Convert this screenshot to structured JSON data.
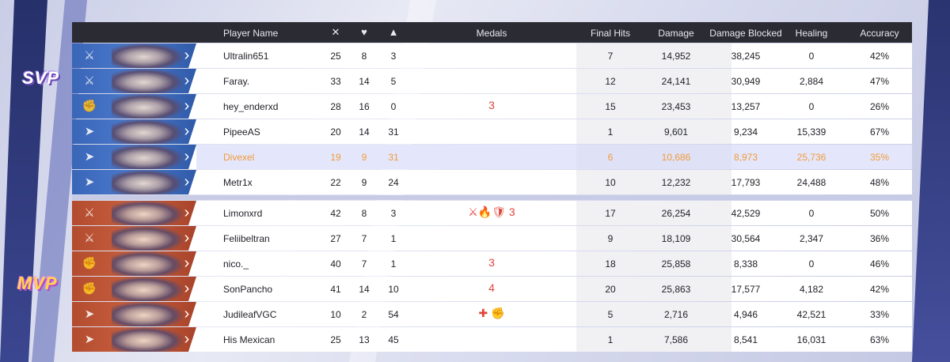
{
  "headers": {
    "player_name": "Player Name",
    "kills_icon": "crossed-swords-icon",
    "deaths_icon": "broken-heart-icon",
    "assists_icon": "assist-icon",
    "medals": "Medals",
    "final_hits": "Final Hits",
    "damage": "Damage",
    "damage_blocked": "Damage Blocked",
    "healing": "Healing",
    "accuracy": "Accuracy"
  },
  "badges": {
    "svp": "SVP",
    "mvp": "MVP"
  },
  "team_blue": [
    {
      "role": "duelist",
      "name": "Ultralin651",
      "k": "25",
      "d": "8",
      "a": "3",
      "medals": "",
      "final_hits": "7",
      "damage": "14,952",
      "blocked": "38,245",
      "healing": "0",
      "accuracy": "42%"
    },
    {
      "role": "duelist",
      "name": "Faray.",
      "k": "33",
      "d": "14",
      "a": "5",
      "medals": "",
      "final_hits": "12",
      "damage": "24,141",
      "blocked": "30,949",
      "healing": "2,884",
      "accuracy": "47%"
    },
    {
      "role": "vanguard",
      "name": "hey_enderxd",
      "k": "28",
      "d": "16",
      "a": "0",
      "medals": "3",
      "final_hits": "15",
      "damage": "23,453",
      "blocked": "13,257",
      "healing": "0",
      "accuracy": "26%"
    },
    {
      "role": "strategist",
      "name": "PipeeAS",
      "k": "20",
      "d": "14",
      "a": "31",
      "medals": "",
      "final_hits": "1",
      "damage": "9,601",
      "blocked": "9,234",
      "healing": "15,339",
      "accuracy": "67%"
    },
    {
      "role": "strategist",
      "name": "Divexel",
      "k": "19",
      "d": "9",
      "a": "31",
      "medals": "",
      "final_hits": "6",
      "damage": "10,686",
      "blocked": "8,973",
      "healing": "25,736",
      "accuracy": "35%",
      "highlight": true
    },
    {
      "role": "strategist",
      "name": "Metr1x",
      "k": "22",
      "d": "9",
      "a": "24",
      "medals": "",
      "final_hits": "10",
      "damage": "12,232",
      "blocked": "17,793",
      "healing": "24,488",
      "accuracy": "48%"
    }
  ],
  "team_red": [
    {
      "role": "duelist",
      "name": "Limonxrd",
      "k": "42",
      "d": "8",
      "a": "3",
      "medals": "⚔🔥🛡 3",
      "final_hits": "17",
      "damage": "26,254",
      "blocked": "42,529",
      "healing": "0",
      "accuracy": "50%"
    },
    {
      "role": "duelist",
      "name": "Feliibeltran",
      "k": "27",
      "d": "7",
      "a": "1",
      "medals": "",
      "final_hits": "9",
      "damage": "18,109",
      "blocked": "30,564",
      "healing": "2,347",
      "accuracy": "36%"
    },
    {
      "role": "vanguard",
      "name": "nico._",
      "k": "40",
      "d": "7",
      "a": "1",
      "medals": "3",
      "final_hits": "18",
      "damage": "25,858",
      "blocked": "8,338",
      "healing": "0",
      "accuracy": "46%"
    },
    {
      "role": "vanguard",
      "name": "SonPancho",
      "k": "41",
      "d": "14",
      "a": "10",
      "medals": "4",
      "final_hits": "20",
      "damage": "25,863",
      "blocked": "17,577",
      "healing": "4,182",
      "accuracy": "42%"
    },
    {
      "role": "strategist",
      "name": "JudileafVGC",
      "k": "10",
      "d": "2",
      "a": "54",
      "medals": "✚ ✊",
      "final_hits": "5",
      "damage": "2,716",
      "blocked": "4,946",
      "healing": "42,521",
      "accuracy": "33%"
    },
    {
      "role": "strategist",
      "name": "His Mexican",
      "k": "25",
      "d": "13",
      "a": "45",
      "medals": "",
      "final_hits": "1",
      "damage": "7,586",
      "blocked": "8,541",
      "healing": "16,031",
      "accuracy": "63%"
    }
  ],
  "colors": {
    "blue_team": "#3a66b8",
    "red_team": "#b34b2f",
    "highlight_text": "#f29a3a",
    "header_bg": "#2b2c33",
    "medal_red": "#e0453a"
  }
}
